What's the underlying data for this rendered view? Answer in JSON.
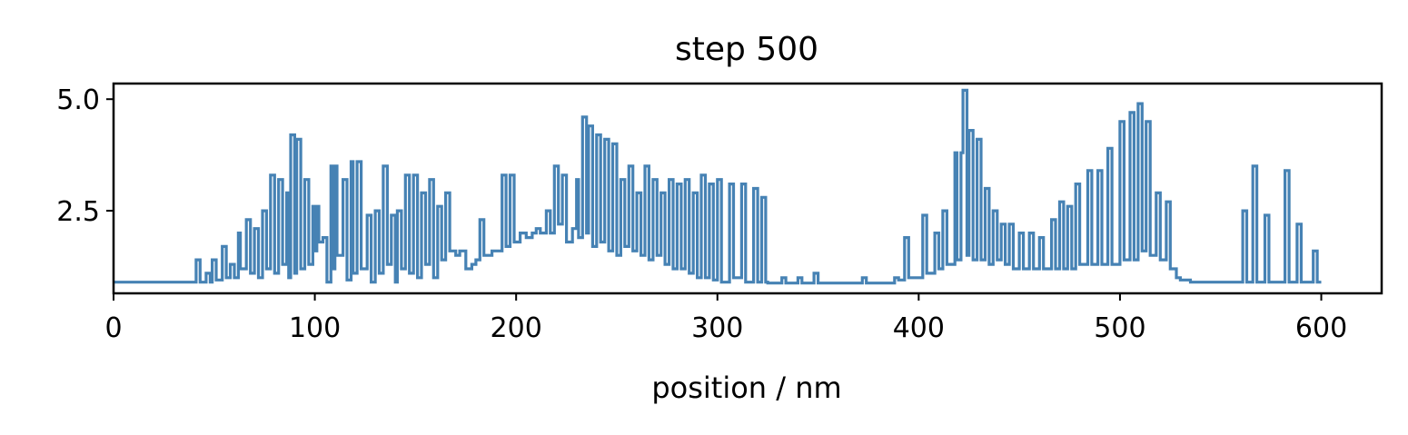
{
  "chart_data": {
    "type": "line",
    "title": "step 500",
    "xlabel": "position / nm",
    "ylabel": "",
    "xlim": [
      0,
      630
    ],
    "ylim": [
      0.65,
      5.35
    ],
    "xticks": [
      0,
      100,
      200,
      300,
      400,
      500,
      600
    ],
    "yticks": [
      2.5,
      5.0
    ],
    "xtick_labels": [
      "0",
      "100",
      "200",
      "300",
      "400",
      "500",
      "600"
    ],
    "ytick_labels": [
      "2.5",
      "5.0"
    ],
    "grid": false,
    "legend": "none",
    "colors": {
      "series": "#4682b4",
      "axes": "#000000",
      "background": "#ffffff"
    },
    "series": [
      {
        "values": [
          [
            0,
            0.9
          ],
          [
            40,
            0.9
          ],
          [
            41,
            1.4
          ],
          [
            43,
            0.9
          ],
          [
            46,
            1.1
          ],
          [
            48,
            0.9
          ],
          [
            49,
            1.4
          ],
          [
            51,
            0.95
          ],
          [
            54,
            1.7
          ],
          [
            56,
            1.0
          ],
          [
            58,
            1.3
          ],
          [
            60,
            1.0
          ],
          [
            62,
            2.0
          ],
          [
            63,
            1.2
          ],
          [
            66,
            2.3
          ],
          [
            68,
            1.1
          ],
          [
            70,
            2.1
          ],
          [
            72,
            1.0
          ],
          [
            74,
            2.5
          ],
          [
            76,
            1.2
          ],
          [
            78,
            3.3
          ],
          [
            80,
            1.1
          ],
          [
            82,
            3.2
          ],
          [
            84,
            1.3
          ],
          [
            86,
            2.9
          ],
          [
            87,
            1.0
          ],
          [
            88,
            4.2
          ],
          [
            90,
            1.1
          ],
          [
            91,
            4.1
          ],
          [
            93,
            1.2
          ],
          [
            95,
            3.2
          ],
          [
            97,
            1.3
          ],
          [
            99,
            2.6
          ],
          [
            100,
            1.6
          ],
          [
            101,
            2.6
          ],
          [
            102,
            1.8
          ],
          [
            104,
            1.9
          ],
          [
            106,
            0.9
          ],
          [
            108,
            3.5
          ],
          [
            109,
            1.2
          ],
          [
            110,
            3.5
          ],
          [
            111,
            1.5
          ],
          [
            114,
            3.2
          ],
          [
            116,
            0.95
          ],
          [
            118,
            3.6
          ],
          [
            119,
            1.1
          ],
          [
            121,
            3.6
          ],
          [
            123,
            1.2
          ],
          [
            126,
            2.4
          ],
          [
            128,
            0.9
          ],
          [
            130,
            2.5
          ],
          [
            132,
            1.1
          ],
          [
            134,
            3.5
          ],
          [
            136,
            1.3
          ],
          [
            138,
            2.4
          ],
          [
            140,
            0.9
          ],
          [
            141,
            2.5
          ],
          [
            143,
            1.2
          ],
          [
            145,
            3.3
          ],
          [
            147,
            1.1
          ],
          [
            149,
            3.3
          ],
          [
            151,
            1.0
          ],
          [
            153,
            2.9
          ],
          [
            155,
            1.3
          ],
          [
            157,
            3.2
          ],
          [
            159,
            1.0
          ],
          [
            161,
            2.6
          ],
          [
            163,
            1.4
          ],
          [
            165,
            2.9
          ],
          [
            167,
            1.6
          ],
          [
            170,
            1.5
          ],
          [
            172,
            1.6
          ],
          [
            175,
            1.2
          ],
          [
            178,
            1.3
          ],
          [
            180,
            1.4
          ],
          [
            182,
            2.3
          ],
          [
            184,
            1.5
          ],
          [
            188,
            1.6
          ],
          [
            190,
            1.6
          ],
          [
            193,
            3.3
          ],
          [
            195,
            1.7
          ],
          [
            197,
            3.3
          ],
          [
            199,
            1.8
          ],
          [
            202,
            2.0
          ],
          [
            205,
            1.9
          ],
          [
            208,
            2.0
          ],
          [
            210,
            2.1
          ],
          [
            212,
            2.0
          ],
          [
            215,
            2.5
          ],
          [
            217,
            2.0
          ],
          [
            219,
            3.5
          ],
          [
            221,
            2.2
          ],
          [
            223,
            3.3
          ],
          [
            225,
            1.8
          ],
          [
            228,
            2.1
          ],
          [
            230,
            3.2
          ],
          [
            231,
            1.9
          ],
          [
            233,
            4.6
          ],
          [
            235,
            2.0
          ],
          [
            236,
            4.4
          ],
          [
            238,
            1.7
          ],
          [
            240,
            4.2
          ],
          [
            242,
            1.8
          ],
          [
            244,
            4.1
          ],
          [
            246,
            1.6
          ],
          [
            248,
            4.0
          ],
          [
            250,
            1.5
          ],
          [
            252,
            3.2
          ],
          [
            254,
            1.7
          ],
          [
            256,
            3.5
          ],
          [
            258,
            1.6
          ],
          [
            260,
            2.9
          ],
          [
            262,
            1.5
          ],
          [
            264,
            3.5
          ],
          [
            266,
            1.4
          ],
          [
            268,
            3.2
          ],
          [
            270,
            1.5
          ],
          [
            272,
            2.9
          ],
          [
            274,
            1.3
          ],
          [
            276,
            3.2
          ],
          [
            278,
            1.2
          ],
          [
            280,
            3.1
          ],
          [
            282,
            1.2
          ],
          [
            284,
            3.2
          ],
          [
            286,
            1.1
          ],
          [
            288,
            2.9
          ],
          [
            290,
            1.0
          ],
          [
            292,
            3.3
          ],
          [
            294,
            1.0
          ],
          [
            296,
            3.1
          ],
          [
            298,
            0.95
          ],
          [
            300,
            3.2
          ],
          [
            302,
            0.9
          ],
          [
            306,
            3.1
          ],
          [
            308,
            1.0
          ],
          [
            312,
            3.1
          ],
          [
            314,
            0.9
          ],
          [
            318,
            3.0
          ],
          [
            320,
            0.9
          ],
          [
            322,
            2.8
          ],
          [
            324,
            0.9
          ],
          [
            325,
            0.88
          ],
          [
            330,
            0.88
          ],
          [
            332,
            1.0
          ],
          [
            334,
            0.88
          ],
          [
            340,
            1.0
          ],
          [
            342,
            0.88
          ],
          [
            348,
            1.1
          ],
          [
            350,
            0.88
          ],
          [
            370,
            0.88
          ],
          [
            372,
            1.0
          ],
          [
            374,
            0.88
          ],
          [
            385,
            0.88
          ],
          [
            388,
            1.0
          ],
          [
            390,
            0.95
          ],
          [
            393,
            1.9
          ],
          [
            395,
            1.0
          ],
          [
            400,
            1.0
          ],
          [
            402,
            2.4
          ],
          [
            404,
            1.1
          ],
          [
            408,
            2.0
          ],
          [
            410,
            1.2
          ],
          [
            412,
            2.5
          ],
          [
            414,
            1.3
          ],
          [
            418,
            3.8
          ],
          [
            419,
            1.4
          ],
          [
            421,
            3.8
          ],
          [
            422,
            5.2
          ],
          [
            424,
            1.5
          ],
          [
            425,
            4.3
          ],
          [
            427,
            1.4
          ],
          [
            429,
            4.1
          ],
          [
            431,
            1.4
          ],
          [
            433,
            3.0
          ],
          [
            435,
            1.3
          ],
          [
            437,
            2.5
          ],
          [
            439,
            1.4
          ],
          [
            441,
            2.2
          ],
          [
            443,
            1.3
          ],
          [
            445,
            2.2
          ],
          [
            447,
            1.2
          ],
          [
            450,
            2.0
          ],
          [
            452,
            1.2
          ],
          [
            455,
            2.0
          ],
          [
            457,
            1.2
          ],
          [
            460,
            1.9
          ],
          [
            462,
            1.2
          ],
          [
            466,
            2.3
          ],
          [
            468,
            1.2
          ],
          [
            470,
            2.7
          ],
          [
            472,
            1.2
          ],
          [
            474,
            2.6
          ],
          [
            476,
            1.2
          ],
          [
            478,
            3.1
          ],
          [
            480,
            1.3
          ],
          [
            484,
            3.4
          ],
          [
            486,
            1.3
          ],
          [
            489,
            3.4
          ],
          [
            491,
            1.3
          ],
          [
            494,
            3.9
          ],
          [
            496,
            1.3
          ],
          [
            500,
            4.5
          ],
          [
            502,
            1.4
          ],
          [
            505,
            4.7
          ],
          [
            507,
            1.4
          ],
          [
            509,
            4.9
          ],
          [
            511,
            1.6
          ],
          [
            513,
            4.5
          ],
          [
            515,
            1.5
          ],
          [
            518,
            2.9
          ],
          [
            520,
            1.4
          ],
          [
            523,
            2.7
          ],
          [
            525,
            1.2
          ],
          [
            528,
            1.0
          ],
          [
            530,
            0.95
          ],
          [
            535,
            0.9
          ],
          [
            560,
            0.9
          ],
          [
            561,
            2.5
          ],
          [
            563,
            0.9
          ],
          [
            566,
            3.5
          ],
          [
            568,
            0.9
          ],
          [
            572,
            2.4
          ],
          [
            574,
            0.9
          ],
          [
            582,
            3.4
          ],
          [
            584,
            0.9
          ],
          [
            588,
            2.2
          ],
          [
            590,
            0.9
          ],
          [
            595,
            0.9
          ],
          [
            596,
            1.6
          ],
          [
            598,
            0.9
          ],
          [
            600,
            0.9
          ]
        ]
      }
    ]
  }
}
